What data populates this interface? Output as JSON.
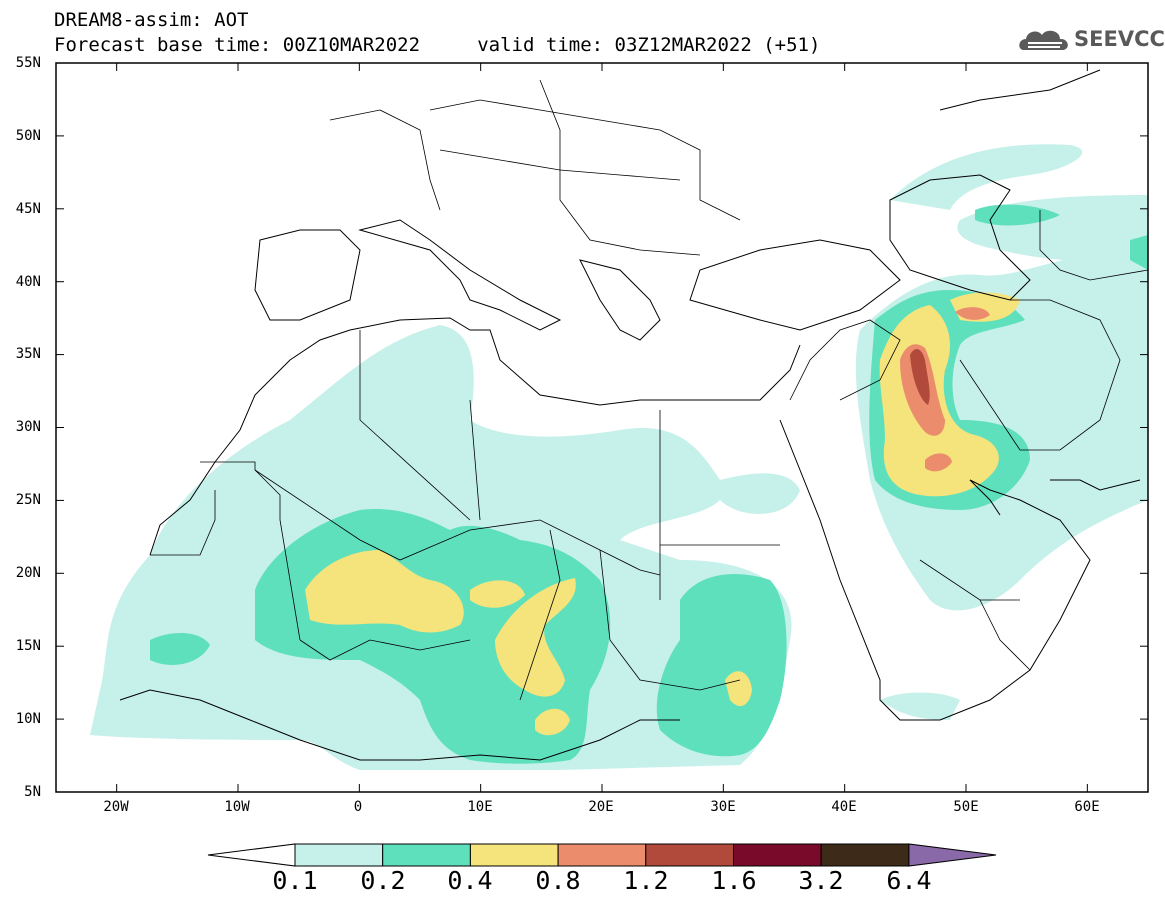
{
  "header": {
    "title": "DREAM8-assim: AOT",
    "line2": "Forecast base time: 00Z10MAR2022     valid time: 03Z12MAR2022 (+51)"
  },
  "logo": {
    "text": "SEEVCCC",
    "icon": "cloud-icon"
  },
  "map": {
    "lat_labels": [
      "55N",
      "50N",
      "45N",
      "40N",
      "35N",
      "30N",
      "25N",
      "20N",
      "15N",
      "10N",
      "5N"
    ],
    "lon_labels": [
      "20W",
      "10W",
      "0",
      "10E",
      "20E",
      "30E",
      "40E",
      "50E",
      "60E"
    ],
    "lon_range": [
      -25,
      65
    ],
    "lat_range": [
      5,
      55
    ]
  },
  "colorbar": {
    "labels": [
      "0.1",
      "0.2",
      "0.4",
      "0.8",
      "1.2",
      "1.6",
      "3.2",
      "6.4"
    ],
    "colors": [
      "#ffffff",
      "#c6f0ea",
      "#5fe0bd",
      "#f5e37c",
      "#eb8d6d",
      "#b24a3c",
      "#7a0a2a",
      "#3d2a18",
      "#8a69a8"
    ]
  }
}
